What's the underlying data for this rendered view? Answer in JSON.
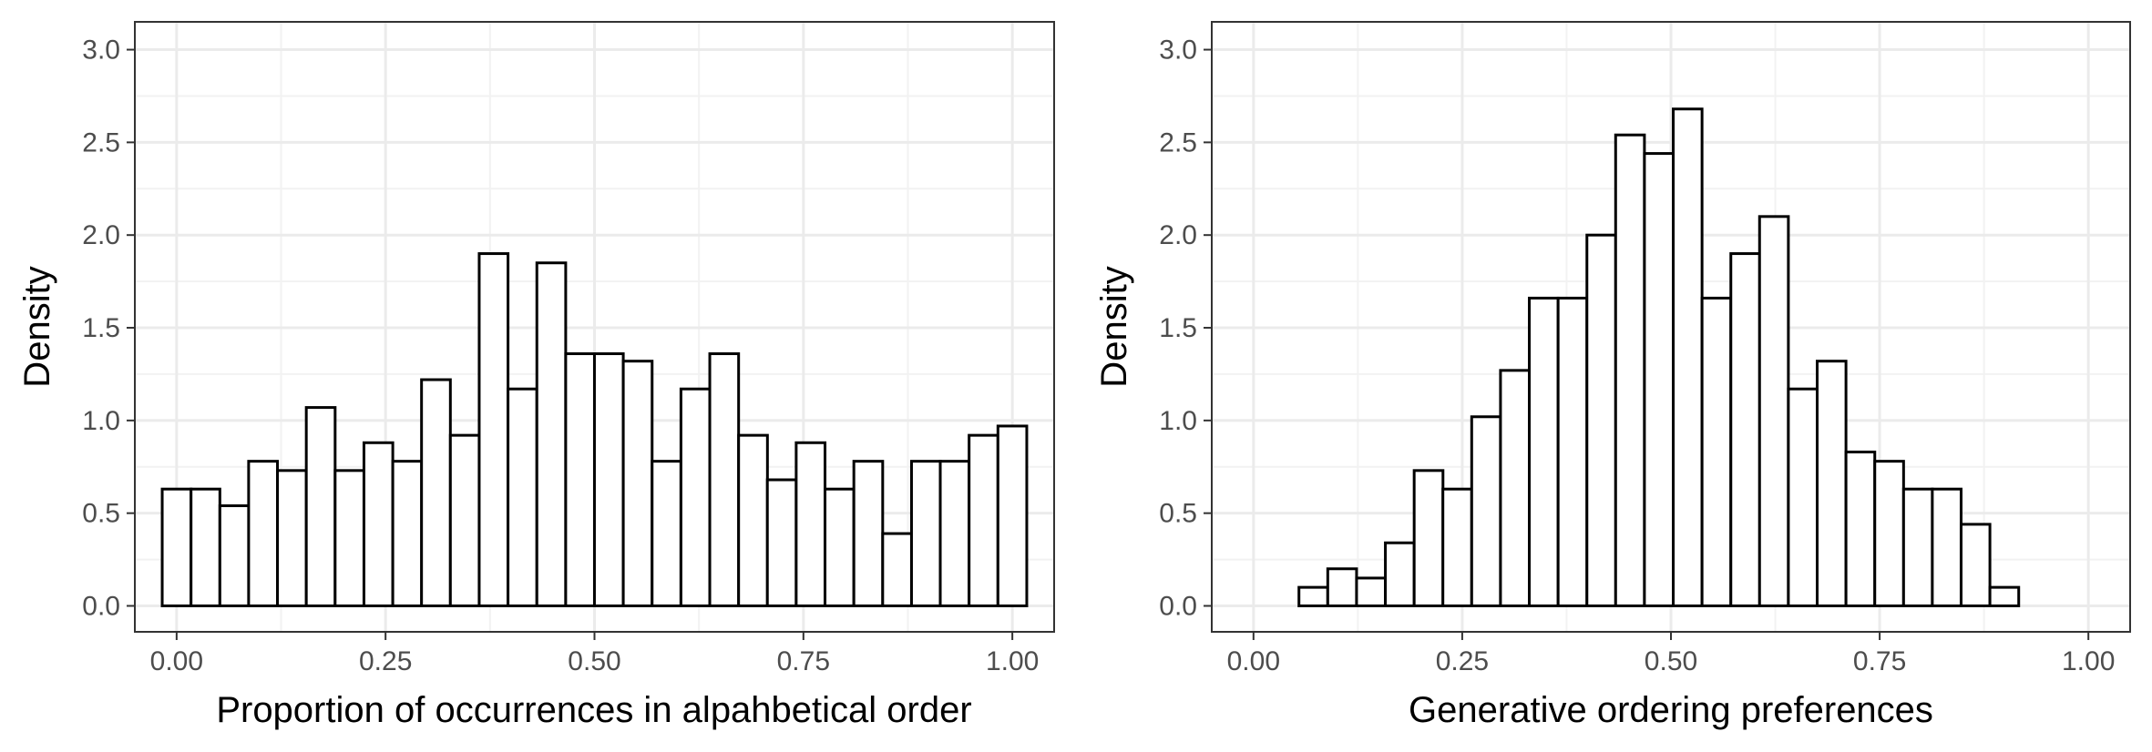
{
  "chart_data": [
    {
      "type": "bar",
      "subtype": "histogram",
      "xlabel": "Proportion of occurrences in alpahbetical order",
      "ylabel": "Density",
      "xlim": [
        -0.05,
        1.05
      ],
      "ylim": [
        -0.14,
        3.15
      ],
      "x_ticks": [
        0,
        0.25,
        0.5,
        0.75,
        1
      ],
      "x_tick_labels": [
        "0.00",
        "0.25",
        "0.50",
        "0.75",
        "1.00"
      ],
      "y_ticks": [
        0,
        0.5,
        1,
        1.5,
        2,
        2.5,
        3
      ],
      "y_tick_labels": [
        "0.0",
        "0.5",
        "1.0",
        "1.5",
        "2.0",
        "2.5",
        "3.0"
      ],
      "bin_width": 0.0345,
      "bin_centers": [
        0,
        0.0345,
        0.069,
        0.1034,
        0.1379,
        0.1724,
        0.2069,
        0.2414,
        0.2759,
        0.3103,
        0.3448,
        0.3793,
        0.4138,
        0.4483,
        0.4828,
        0.5172,
        0.5517,
        0.5862,
        0.6207,
        0.6552,
        0.6897,
        0.7241,
        0.7586,
        0.7931,
        0.8276,
        0.8621,
        0.8966,
        0.931,
        0.9655,
        1.0
      ],
      "values": [
        0.63,
        0.63,
        0.54,
        0.78,
        0.73,
        1.07,
        0.73,
        0.88,
        0.78,
        1.22,
        0.92,
        1.9,
        1.17,
        1.85,
        1.36,
        1.36,
        1.32,
        0.78,
        1.17,
        1.36,
        0.92,
        0.68,
        0.88,
        0.63,
        0.78,
        0.39,
        0.78,
        0.78,
        0.92,
        0.97
      ],
      "grid": true
    },
    {
      "type": "bar",
      "subtype": "histogram",
      "xlabel": "Generative ordering preferences",
      "ylabel": "Density",
      "xlim": [
        -0.05,
        1.05
      ],
      "ylim": [
        -0.14,
        3.15
      ],
      "x_ticks": [
        0,
        0.25,
        0.5,
        0.75,
        1
      ],
      "x_tick_labels": [
        "0.00",
        "0.25",
        "0.50",
        "0.75",
        "1.00"
      ],
      "y_ticks": [
        0,
        0.5,
        1,
        1.5,
        2,
        2.5,
        3
      ],
      "y_tick_labels": [
        "0.0",
        "0.5",
        "1.0",
        "1.5",
        "2.0",
        "2.5",
        "3.0"
      ],
      "bin_width": 0.0345,
      "bin_centers": [
        0.0372,
        0.0717,
        0.1062,
        0.1407,
        0.1752,
        0.2097,
        0.2441,
        0.2786,
        0.3131,
        0.3476,
        0.3821,
        0.4166,
        0.451,
        0.4855,
        0.52,
        0.5545,
        0.589,
        0.6234,
        0.6579,
        0.6924,
        0.7269,
        0.7614,
        0.7959,
        0.8303,
        0.8648,
        0.8993,
        0.9338,
        0.9683
      ],
      "values": [
        0,
        0.1,
        0.2,
        0.15,
        0.34,
        0.73,
        0.63,
        1.02,
        1.27,
        1.66,
        1.66,
        2.0,
        2.54,
        2.44,
        2.68,
        1.66,
        1.9,
        2.1,
        1.17,
        1.32,
        0.83,
        0.78,
        0.63,
        0.63,
        0.44,
        0.1,
        0,
        0
      ],
      "grid": true
    }
  ]
}
